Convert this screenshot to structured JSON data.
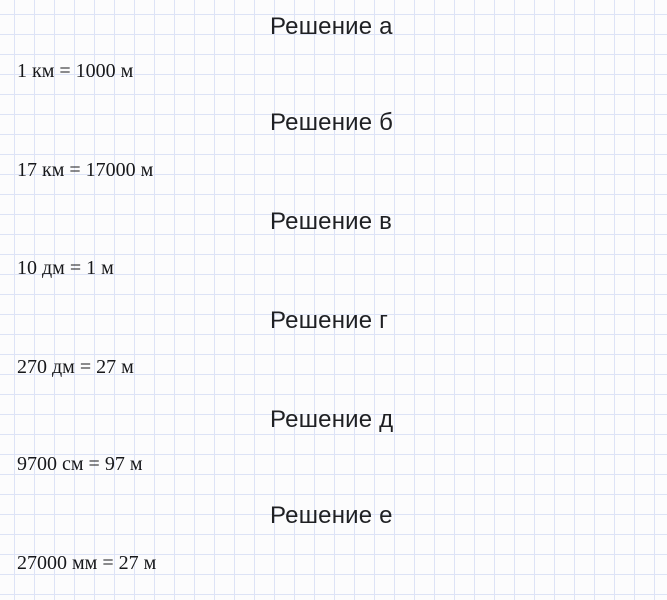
{
  "colors": {
    "background": "#fcfcfd",
    "grid_line": "#dde3f6",
    "heading_text": "#1f2023",
    "formula_text": "#17181b"
  },
  "sections": [
    {
      "heading": "Решение а",
      "formula": "1 км = 1000 м"
    },
    {
      "heading": "Решение б",
      "formula": "17 км = 17000 м"
    },
    {
      "heading": "Решение в",
      "formula": "10 дм = 1 м"
    },
    {
      "heading": "Решение г",
      "formula": "270 дм = 27 м"
    },
    {
      "heading": "Решение д",
      "formula": "9700 см = 97 м"
    },
    {
      "heading": "Решение е",
      "formula": "27000 мм = 27 м"
    }
  ]
}
